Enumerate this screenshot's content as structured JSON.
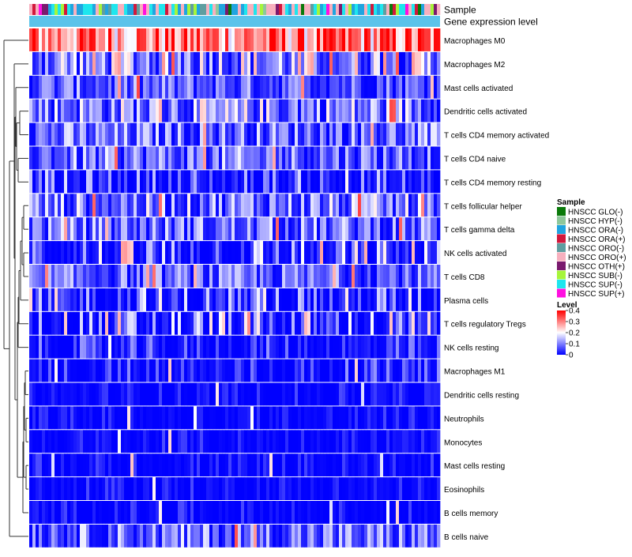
{
  "chart_data": {
    "type": "heatmap",
    "title": "",
    "annotation_labels": [
      "Sample",
      "Gene expression level"
    ],
    "rows": [
      "Macrophages M0",
      "Macrophages M2",
      "Mast cells activated",
      "Dendritic cells activated",
      "T cells CD4 memory activated",
      "T cells CD4 naive",
      "T cells CD4 memory resting",
      "T cells follicular helper",
      "T cells gamma delta",
      "NK cells activated",
      "T cells CD8",
      "Plasma cells",
      "T cells regulatory  Tregs",
      "NK cells resting",
      "Macrophages M1",
      "Dendritic cells resting",
      "Neutrophils",
      "Monocytes",
      "Mast cells resting",
      "Eosinophils",
      "B cells memory",
      "B cells naive"
    ],
    "row_mean_levels": [
      0.3,
      0.12,
      0.07,
      0.1,
      0.08,
      0.08,
      0.03,
      0.09,
      0.08,
      0.05,
      0.07,
      0.04,
      0.05,
      0.02,
      0.02,
      0.01,
      0.01,
      0.01,
      0.01,
      0.01,
      0.01,
      0.08
    ],
    "n_samples": 130,
    "sample_legend": {
      "title": "Sample",
      "entries": [
        {
          "label": "HNSCC GLO(-)",
          "color": "#0a7a0a"
        },
        {
          "label": "HNSCC HYP(-)",
          "color": "#8ec79b"
        },
        {
          "label": "HNSCC ORA(-)",
          "color": "#20a4e0"
        },
        {
          "label": "HNSCC ORA(+)",
          "color": "#d2183c"
        },
        {
          "label": "HNSCC ORO(-)",
          "color": "#5f9ea0"
        },
        {
          "label": "HNSCC ORO(+)",
          "color": "#f7b0be"
        },
        {
          "label": "HNSCC OTH(+)",
          "color": "#7a1a6e"
        },
        {
          "label": "HNSCC SUB(-)",
          "color": "#a6f53a"
        },
        {
          "label": "HNSCC SUP(-)",
          "color": "#1ee6ee"
        },
        {
          "label": "HNSCC SUP(+)",
          "color": "#ff10e0"
        }
      ]
    },
    "level_legend": {
      "title": "Level",
      "ticks": [
        0.4,
        0.3,
        0.2,
        0.1,
        0
      ],
      "ticklabels": [
        "0.4",
        "0.3",
        "0.2",
        "0.1",
        "0"
      ],
      "range": [
        0,
        0.4
      ],
      "colors": [
        "#0000ff",
        "#ffffff",
        "#ff0000"
      ]
    },
    "gene_expression_color": "#5bc3ea",
    "dendrogram": "rows-left"
  }
}
